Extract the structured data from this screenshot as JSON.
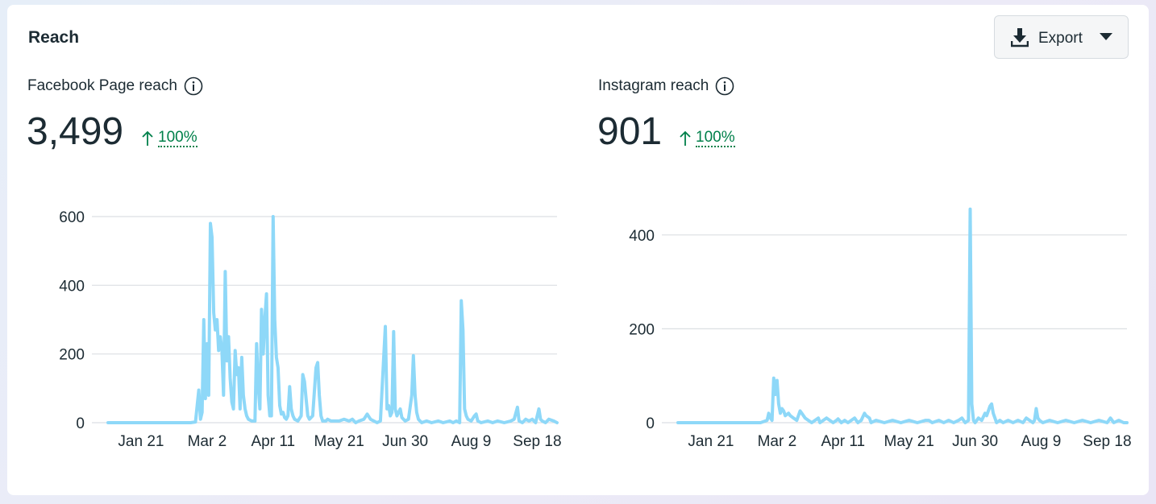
{
  "card": {
    "title": "Reach",
    "export_label": "Export"
  },
  "colors": {
    "line": "#8ed8f8",
    "grid": "#dcdfe3",
    "positive": "#00804a",
    "text": "#1c2b33"
  },
  "panels": [
    {
      "title": "Facebook Page reach",
      "value": "3,499",
      "delta": "100%"
    },
    {
      "title": "Instagram reach",
      "value": "901",
      "delta": "100%"
    }
  ],
  "chart_data": [
    {
      "type": "line",
      "title": "Facebook Page reach",
      "x_tick_labels": [
        "Jan 21",
        "Mar 2",
        "Apr 11",
        "May 21",
        "Jun 30",
        "Aug 9",
        "Sep 18"
      ],
      "x_tick_days": [
        20,
        60,
        100,
        140,
        180,
        220,
        260
      ],
      "xlim": [
        0,
        272
      ],
      "ylim": [
        0,
        600
      ],
      "y_ticks": [
        0,
        200,
        400,
        600
      ],
      "grid": true,
      "series": [
        {
          "name": "Facebook Page reach",
          "points": [
            [
              0,
              0
            ],
            [
              50,
              0
            ],
            [
              53,
              2
            ],
            [
              55,
              95
            ],
            [
              56,
              10
            ],
            [
              57,
              30
            ],
            [
              58,
              300
            ],
            [
              59,
              70
            ],
            [
              60,
              230
            ],
            [
              61,
              80
            ],
            [
              62,
              580
            ],
            [
              63,
              540
            ],
            [
              64,
              320
            ],
            [
              65,
              270
            ],
            [
              66,
              300
            ],
            [
              67,
              210
            ],
            [
              68,
              250
            ],
            [
              69,
              210
            ],
            [
              70,
              80
            ],
            [
              71,
              440
            ],
            [
              72,
              180
            ],
            [
              73,
              250
            ],
            [
              74,
              130
            ],
            [
              75,
              60
            ],
            [
              76,
              40
            ],
            [
              77,
              210
            ],
            [
              78,
              140
            ],
            [
              79,
              160
            ],
            [
              80,
              40
            ],
            [
              81,
              190
            ],
            [
              82,
              80
            ],
            [
              83,
              40
            ],
            [
              84,
              20
            ],
            [
              85,
              10
            ],
            [
              87,
              5
            ],
            [
              89,
              5
            ],
            [
              90,
              230
            ],
            [
              91,
              110
            ],
            [
              92,
              40
            ],
            [
              93,
              330
            ],
            [
              94,
              200
            ],
            [
              95,
              300
            ],
            [
              96,
              375
            ],
            [
              97,
              80
            ],
            [
              98,
              20
            ],
            [
              99,
              20
            ],
            [
              100,
              600
            ],
            [
              101,
              300
            ],
            [
              102,
              190
            ],
            [
              103,
              160
            ],
            [
              104,
              50
            ],
            [
              105,
              25
            ],
            [
              106,
              30
            ],
            [
              107,
              15
            ],
            [
              108,
              10
            ],
            [
              109,
              20
            ],
            [
              110,
              105
            ],
            [
              111,
              40
            ],
            [
              112,
              20
            ],
            [
              113,
              10
            ],
            [
              115,
              5
            ],
            [
              117,
              20
            ],
            [
              118,
              140
            ],
            [
              119,
              120
            ],
            [
              120,
              70
            ],
            [
              121,
              20
            ],
            [
              122,
              10
            ],
            [
              124,
              20
            ],
            [
              126,
              160
            ],
            [
              127,
              175
            ],
            [
              128,
              80
            ],
            [
              129,
              20
            ],
            [
              130,
              5
            ],
            [
              132,
              5
            ],
            [
              133,
              10
            ],
            [
              135,
              5
            ],
            [
              137,
              5
            ],
            [
              140,
              5
            ],
            [
              143,
              10
            ],
            [
              146,
              5
            ],
            [
              148,
              10
            ],
            [
              150,
              0
            ],
            [
              152,
              5
            ],
            [
              155,
              10
            ],
            [
              157,
              25
            ],
            [
              159,
              10
            ],
            [
              161,
              5
            ],
            [
              163,
              0
            ],
            [
              165,
              5
            ],
            [
              168,
              280
            ],
            [
              169,
              40
            ],
            [
              170,
              50
            ],
            [
              171,
              20
            ],
            [
              172,
              30
            ],
            [
              173,
              265
            ],
            [
              174,
              40
            ],
            [
              175,
              20
            ],
            [
              177,
              40
            ],
            [
              178,
              15
            ],
            [
              180,
              5
            ],
            [
              182,
              10
            ],
            [
              184,
              80
            ],
            [
              185,
              195
            ],
            [
              186,
              80
            ],
            [
              187,
              30
            ],
            [
              188,
              10
            ],
            [
              190,
              0
            ],
            [
              193,
              5
            ],
            [
              196,
              0
            ],
            [
              200,
              5
            ],
            [
              203,
              0
            ],
            [
              207,
              5
            ],
            [
              209,
              0
            ],
            [
              211,
              5
            ],
            [
              213,
              0
            ],
            [
              214,
              355
            ],
            [
              215,
              270
            ],
            [
              216,
              40
            ],
            [
              217,
              20
            ],
            [
              218,
              10
            ],
            [
              220,
              5
            ],
            [
              222,
              20
            ],
            [
              223,
              25
            ],
            [
              224,
              5
            ],
            [
              226,
              0
            ],
            [
              230,
              5
            ],
            [
              233,
              0
            ],
            [
              236,
              5
            ],
            [
              240,
              0
            ],
            [
              244,
              5
            ],
            [
              246,
              10
            ],
            [
              248,
              45
            ],
            [
              249,
              5
            ],
            [
              251,
              0
            ],
            [
              253,
              10
            ],
            [
              255,
              5
            ],
            [
              257,
              10
            ],
            [
              259,
              0
            ],
            [
              261,
              40
            ],
            [
              262,
              10
            ],
            [
              263,
              5
            ],
            [
              265,
              0
            ],
            [
              267,
              10
            ],
            [
              270,
              5
            ],
            [
              272,
              0
            ]
          ]
        }
      ]
    },
    {
      "type": "line",
      "title": "Instagram reach",
      "x_tick_labels": [
        "Jan 21",
        "Mar 2",
        "Apr 11",
        "May 21",
        "Jun 30",
        "Aug 9",
        "Sep 18"
      ],
      "x_tick_days": [
        20,
        60,
        100,
        140,
        180,
        220,
        260
      ],
      "xlim": [
        0,
        272
      ],
      "ylim": [
        0,
        470
      ],
      "y_ticks": [
        0,
        200,
        400
      ],
      "grid": true,
      "series": [
        {
          "name": "Instagram reach",
          "points": [
            [
              0,
              0
            ],
            [
              50,
              0
            ],
            [
              54,
              5
            ],
            [
              55,
              20
            ],
            [
              56,
              10
            ],
            [
              57,
              5
            ],
            [
              58,
              95
            ],
            [
              59,
              60
            ],
            [
              60,
              90
            ],
            [
              61,
              40
            ],
            [
              62,
              20
            ],
            [
              63,
              30
            ],
            [
              64,
              25
            ],
            [
              65,
              15
            ],
            [
              67,
              20
            ],
            [
              68,
              15
            ],
            [
              70,
              10
            ],
            [
              72,
              5
            ],
            [
              74,
              25
            ],
            [
              75,
              20
            ],
            [
              77,
              10
            ],
            [
              79,
              5
            ],
            [
              81,
              0
            ],
            [
              83,
              5
            ],
            [
              85,
              10
            ],
            [
              86,
              0
            ],
            [
              88,
              5
            ],
            [
              90,
              10
            ],
            [
              92,
              5
            ],
            [
              94,
              0
            ],
            [
              96,
              5
            ],
            [
              97,
              8
            ],
            [
              99,
              0
            ],
            [
              101,
              5
            ],
            [
              103,
              0
            ],
            [
              105,
              5
            ],
            [
              107,
              10
            ],
            [
              109,
              0
            ],
            [
              111,
              5
            ],
            [
              113,
              20
            ],
            [
              114,
              15
            ],
            [
              116,
              10
            ],
            [
              117,
              0
            ],
            [
              120,
              5
            ],
            [
              125,
              0
            ],
            [
              130,
              5
            ],
            [
              135,
              0
            ],
            [
              140,
              5
            ],
            [
              145,
              0
            ],
            [
              150,
              5
            ],
            [
              152,
              5
            ],
            [
              154,
              0
            ],
            [
              158,
              5
            ],
            [
              161,
              0
            ],
            [
              164,
              5
            ],
            [
              167,
              0
            ],
            [
              170,
              5
            ],
            [
              172,
              10
            ],
            [
              174,
              0
            ],
            [
              176,
              5
            ],
            [
              177,
              455
            ],
            [
              178,
              40
            ],
            [
              179,
              5
            ],
            [
              180,
              0
            ],
            [
              181,
              5
            ],
            [
              182,
              10
            ],
            [
              184,
              5
            ],
            [
              186,
              20
            ],
            [
              187,
              15
            ],
            [
              188,
              25
            ],
            [
              189,
              35
            ],
            [
              190,
              40
            ],
            [
              191,
              20
            ],
            [
              192,
              10
            ],
            [
              193,
              0
            ],
            [
              195,
              5
            ],
            [
              197,
              0
            ],
            [
              200,
              5
            ],
            [
              203,
              0
            ],
            [
              206,
              5
            ],
            [
              209,
              0
            ],
            [
              211,
              10
            ],
            [
              213,
              5
            ],
            [
              215,
              0
            ],
            [
              216,
              5
            ],
            [
              217,
              30
            ],
            [
              218,
              10
            ],
            [
              219,
              5
            ],
            [
              221,
              0
            ],
            [
              225,
              5
            ],
            [
              230,
              0
            ],
            [
              235,
              5
            ],
            [
              240,
              0
            ],
            [
              245,
              5
            ],
            [
              250,
              0
            ],
            [
              255,
              5
            ],
            [
              260,
              0
            ],
            [
              262,
              10
            ],
            [
              264,
              0
            ],
            [
              267,
              5
            ],
            [
              270,
              0
            ],
            [
              272,
              0
            ]
          ]
        }
      ]
    }
  ]
}
